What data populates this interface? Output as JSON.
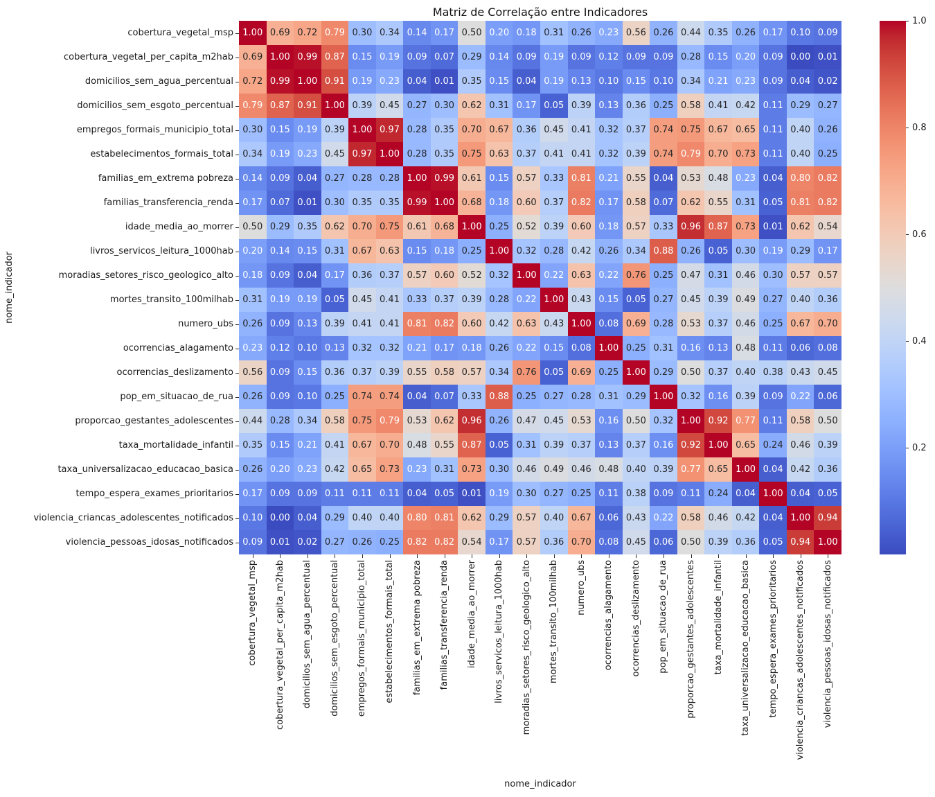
{
  "chart_data": {
    "type": "heatmap",
    "title": "Matriz de Correlação entre Indicadores",
    "xlabel": "nome_indicador",
    "ylabel": "nome_indicador",
    "categories": [
      "cobertura_vegetal_msp",
      "cobertura_vegetal_per_capita_m2hab",
      "domicilios_sem_agua_percentual",
      "domicilios_sem_esgoto_percentual",
      "empregos_formais_municipio_total",
      "estabelecimentos_formais_total",
      "familias_em_extrema pobreza",
      "familias_transferencia_renda",
      "idade_media_ao_morrer",
      "livros_servicos_leitura_1000hab",
      "moradias_setores_risco_geologico_alto",
      "mortes_transito_100milhab",
      "numero_ubs",
      "ocorrencias_alagamento",
      "ocorrencias_deslizamento",
      "pop_em_situacao_de_rua",
      "proporcao_gestantes_adolescentes",
      "taxa_mortalidade_infantil",
      "taxa_universalizacao_educacao_basica",
      "tempo_espera_exames_prioritarios",
      "violencia_criancas_adolescentes_notificados",
      "violencia_pessoas_idosas_notificados"
    ],
    "matrix": [
      [
        1.0,
        0.69,
        0.72,
        0.79,
        0.3,
        0.34,
        0.14,
        0.17,
        0.5,
        0.2,
        0.18,
        0.31,
        0.26,
        0.23,
        0.56,
        0.26,
        0.44,
        0.35,
        0.26,
        0.17,
        0.1,
        0.09
      ],
      [
        0.69,
        1.0,
        0.99,
        0.87,
        0.15,
        0.19,
        0.09,
        0.07,
        0.29,
        0.14,
        0.09,
        0.19,
        0.09,
        0.12,
        0.09,
        0.09,
        0.28,
        0.15,
        0.2,
        0.09,
        0.0,
        0.01
      ],
      [
        0.72,
        0.99,
        1.0,
        0.91,
        0.19,
        0.23,
        0.04,
        0.01,
        0.35,
        0.15,
        0.04,
        0.19,
        0.13,
        0.1,
        0.15,
        0.1,
        0.34,
        0.21,
        0.23,
        0.09,
        0.04,
        0.02
      ],
      [
        0.79,
        0.87,
        0.91,
        1.0,
        0.39,
        0.45,
        0.27,
        0.3,
        0.62,
        0.31,
        0.17,
        0.05,
        0.39,
        0.13,
        0.36,
        0.25,
        0.58,
        0.41,
        0.42,
        0.11,
        0.29,
        0.27
      ],
      [
        0.3,
        0.15,
        0.19,
        0.39,
        1.0,
        0.97,
        0.28,
        0.35,
        0.7,
        0.67,
        0.36,
        0.45,
        0.41,
        0.32,
        0.37,
        0.74,
        0.75,
        0.67,
        0.65,
        0.11,
        0.4,
        0.26
      ],
      [
        0.34,
        0.19,
        0.23,
        0.45,
        0.97,
        1.0,
        0.28,
        0.35,
        0.75,
        0.63,
        0.37,
        0.41,
        0.41,
        0.32,
        0.39,
        0.74,
        0.79,
        0.7,
        0.73,
        0.11,
        0.4,
        0.25
      ],
      [
        0.14,
        0.09,
        0.04,
        0.27,
        0.28,
        0.28,
        1.0,
        0.99,
        0.61,
        0.15,
        0.57,
        0.33,
        0.81,
        0.21,
        0.55,
        0.04,
        0.53,
        0.48,
        0.23,
        0.04,
        0.8,
        0.82
      ],
      [
        0.17,
        0.07,
        0.01,
        0.3,
        0.35,
        0.35,
        0.99,
        1.0,
        0.68,
        0.18,
        0.6,
        0.37,
        0.82,
        0.17,
        0.58,
        0.07,
        0.62,
        0.55,
        0.31,
        0.05,
        0.81,
        0.82
      ],
      [
        0.5,
        0.29,
        0.35,
        0.62,
        0.7,
        0.75,
        0.61,
        0.68,
        1.0,
        0.25,
        0.52,
        0.39,
        0.6,
        0.18,
        0.57,
        0.33,
        0.96,
        0.87,
        0.73,
        0.01,
        0.62,
        0.54
      ],
      [
        0.2,
        0.14,
        0.15,
        0.31,
        0.67,
        0.63,
        0.15,
        0.18,
        0.25,
        1.0,
        0.32,
        0.28,
        0.42,
        0.26,
        0.34,
        0.88,
        0.26,
        0.05,
        0.3,
        0.19,
        0.29,
        0.17
      ],
      [
        0.18,
        0.09,
        0.04,
        0.17,
        0.36,
        0.37,
        0.57,
        0.6,
        0.52,
        0.32,
        1.0,
        0.22,
        0.63,
        0.22,
        0.76,
        0.25,
        0.47,
        0.31,
        0.46,
        0.3,
        0.57,
        0.57
      ],
      [
        0.31,
        0.19,
        0.19,
        0.05,
        0.45,
        0.41,
        0.33,
        0.37,
        0.39,
        0.28,
        0.22,
        1.0,
        0.43,
        0.15,
        0.05,
        0.27,
        0.45,
        0.39,
        0.49,
        0.27,
        0.4,
        0.36
      ],
      [
        0.26,
        0.09,
        0.13,
        0.39,
        0.41,
        0.41,
        0.81,
        0.82,
        0.6,
        0.42,
        0.63,
        0.43,
        1.0,
        0.08,
        0.69,
        0.28,
        0.53,
        0.37,
        0.46,
        0.25,
        0.67,
        0.7
      ],
      [
        0.23,
        0.12,
        0.1,
        0.13,
        0.32,
        0.32,
        0.21,
        0.17,
        0.18,
        0.26,
        0.22,
        0.15,
        0.08,
        1.0,
        0.25,
        0.31,
        0.16,
        0.13,
        0.48,
        0.11,
        0.06,
        0.08
      ],
      [
        0.56,
        0.09,
        0.15,
        0.36,
        0.37,
        0.39,
        0.55,
        0.58,
        0.57,
        0.34,
        0.76,
        0.05,
        0.69,
        0.25,
        1.0,
        0.29,
        0.5,
        0.37,
        0.4,
        0.38,
        0.43,
        0.45
      ],
      [
        0.26,
        0.09,
        0.1,
        0.25,
        0.74,
        0.74,
        0.04,
        0.07,
        0.33,
        0.88,
        0.25,
        0.27,
        0.28,
        0.31,
        0.29,
        1.0,
        0.32,
        0.16,
        0.39,
        0.09,
        0.22,
        0.06
      ],
      [
        0.44,
        0.28,
        0.34,
        0.58,
        0.75,
        0.79,
        0.53,
        0.62,
        0.96,
        0.26,
        0.47,
        0.45,
        0.53,
        0.16,
        0.5,
        0.32,
        1.0,
        0.92,
        0.77,
        0.11,
        0.58,
        0.5
      ],
      [
        0.35,
        0.15,
        0.21,
        0.41,
        0.67,
        0.7,
        0.48,
        0.55,
        0.87,
        0.05,
        0.31,
        0.39,
        0.37,
        0.13,
        0.37,
        0.16,
        0.92,
        1.0,
        0.65,
        0.24,
        0.46,
        0.39
      ],
      [
        0.26,
        0.2,
        0.23,
        0.42,
        0.65,
        0.73,
        0.23,
        0.31,
        0.73,
        0.3,
        0.46,
        0.49,
        0.46,
        0.48,
        0.4,
        0.39,
        0.77,
        0.65,
        1.0,
        0.04,
        0.42,
        0.36
      ],
      [
        0.17,
        0.09,
        0.09,
        0.11,
        0.11,
        0.11,
        0.04,
        0.05,
        0.01,
        0.19,
        0.3,
        0.27,
        0.25,
        0.11,
        0.38,
        0.09,
        0.11,
        0.24,
        0.04,
        1.0,
        0.04,
        0.05
      ],
      [
        0.1,
        0.0,
        0.04,
        0.29,
        0.4,
        0.4,
        0.8,
        0.81,
        0.62,
        0.29,
        0.57,
        0.4,
        0.67,
        0.06,
        0.43,
        0.22,
        0.58,
        0.46,
        0.42,
        0.04,
        1.0,
        0.94
      ],
      [
        0.09,
        0.01,
        0.02,
        0.27,
        0.26,
        0.25,
        0.82,
        0.82,
        0.54,
        0.17,
        0.57,
        0.36,
        0.7,
        0.08,
        0.45,
        0.06,
        0.5,
        0.39,
        0.36,
        0.05,
        0.94,
        1.0
      ]
    ],
    "value_format": "0.00",
    "vmin": 0.0,
    "vmax": 1.0,
    "colorbar_ticks": [
      1.0,
      0.8,
      0.6,
      0.4,
      0.2
    ],
    "legend_position": "right-colorbar",
    "grid": false,
    "colormap": "coolwarm",
    "colormap_rgb": [
      [
        59,
        76,
        192
      ],
      [
        68,
        90,
        204
      ],
      [
        77,
        104,
        215
      ],
      [
        87,
        117,
        225
      ],
      [
        98,
        130,
        234
      ],
      [
        108,
        142,
        241
      ],
      [
        119,
        154,
        247
      ],
      [
        130,
        165,
        251
      ],
      [
        141,
        176,
        254
      ],
      [
        152,
        185,
        255
      ],
      [
        163,
        194,
        255
      ],
      [
        174,
        201,
        253
      ],
      [
        184,
        208,
        249
      ],
      [
        194,
        213,
        244
      ],
      [
        204,
        217,
        238
      ],
      [
        213,
        219,
        230
      ],
      [
        221,
        221,
        221
      ],
      [
        229,
        216,
        209
      ],
      [
        236,
        211,
        197
      ],
      [
        241,
        204,
        185
      ],
      [
        245,
        196,
        173
      ],
      [
        247,
        187,
        160
      ],
      [
        247,
        177,
        148
      ],
      [
        247,
        166,
        135
      ],
      [
        244,
        154,
        123
      ],
      [
        241,
        141,
        111
      ],
      [
        236,
        127,
        99
      ],
      [
        229,
        112,
        88
      ],
      [
        222,
        96,
        77
      ],
      [
        213,
        80,
        66
      ],
      [
        203,
        62,
        56
      ],
      [
        192,
        40,
        47
      ],
      [
        180,
        4,
        38
      ]
    ]
  },
  "colors": {
    "background": "#ffffff",
    "text": "#1a1a1a",
    "annotation_dark": "#262626",
    "annotation_light": "#ffffff",
    "cmap_low": "#3b4cc0",
    "cmap_mid": "#dddddd",
    "cmap_high": "#b40426"
  }
}
